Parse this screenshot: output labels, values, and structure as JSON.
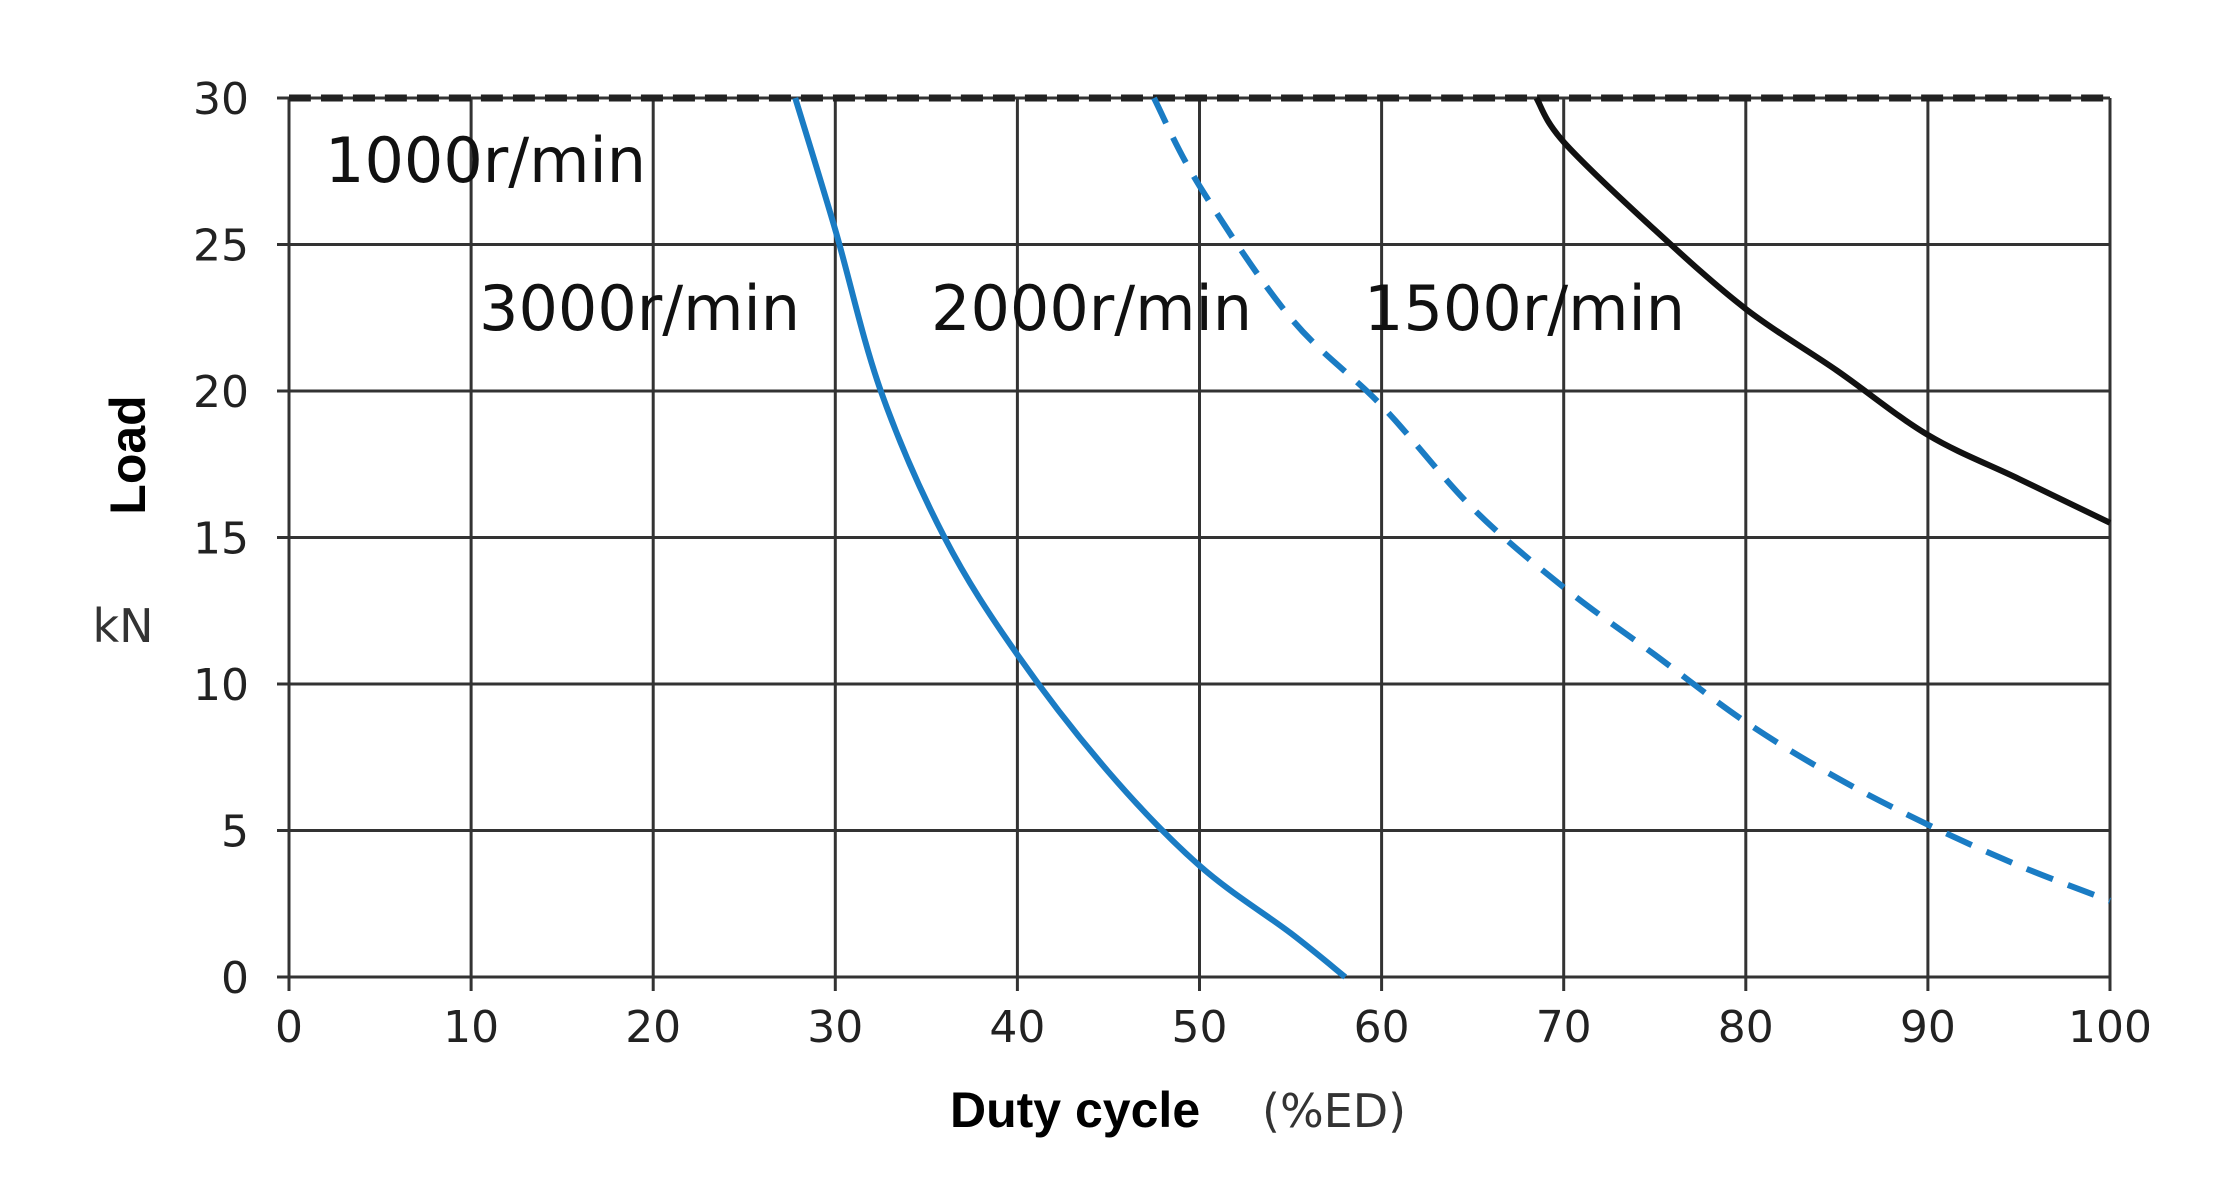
{
  "chart_data": {
    "type": "line",
    "title": "",
    "xlabel": "Duty cycle",
    "xlabel_unit": "(%ED)",
    "ylabel": "Load",
    "ylabel_unit": "kN",
    "xlim": [
      0,
      100
    ],
    "ylim": [
      0,
      30
    ],
    "xticks": [
      "0",
      "10",
      "20",
      "30",
      "40",
      "50",
      "60",
      "70",
      "80",
      "90",
      "100"
    ],
    "yticks": [
      "0",
      "5",
      "10",
      "15",
      "20",
      "25",
      "30"
    ],
    "grid": true,
    "series": [
      {
        "name": "1000r/min",
        "color": "#222222",
        "dashed": true,
        "x": [
          0,
          100
        ],
        "y": [
          30,
          30
        ]
      },
      {
        "name": "3000r/min",
        "color": "#1a7cc4",
        "dashed": false,
        "x": [
          27.8,
          30,
          32.5,
          36,
          40,
          45,
          50,
          55,
          58
        ],
        "y": [
          30,
          25.5,
          20,
          15,
          11,
          7,
          3.8,
          1.5,
          0
        ]
      },
      {
        "name": "2000r/min",
        "color": "#1a7cc4",
        "dashed": true,
        "x": [
          47.5,
          50,
          55,
          60,
          65,
          70,
          75,
          80,
          85,
          90,
          95,
          100
        ],
        "y": [
          30,
          27,
          22.5,
          19.5,
          16,
          13.3,
          11,
          8.7,
          6.8,
          5.2,
          3.8,
          2.6
        ]
      },
      {
        "name": "1500r/min",
        "color": "#111111",
        "dashed": false,
        "x": [
          68.5,
          70,
          75,
          80,
          85,
          90,
          95,
          100
        ],
        "y": [
          30,
          28.5,
          25.5,
          22.8,
          20.7,
          18.5,
          17,
          15.5
        ]
      }
    ]
  }
}
